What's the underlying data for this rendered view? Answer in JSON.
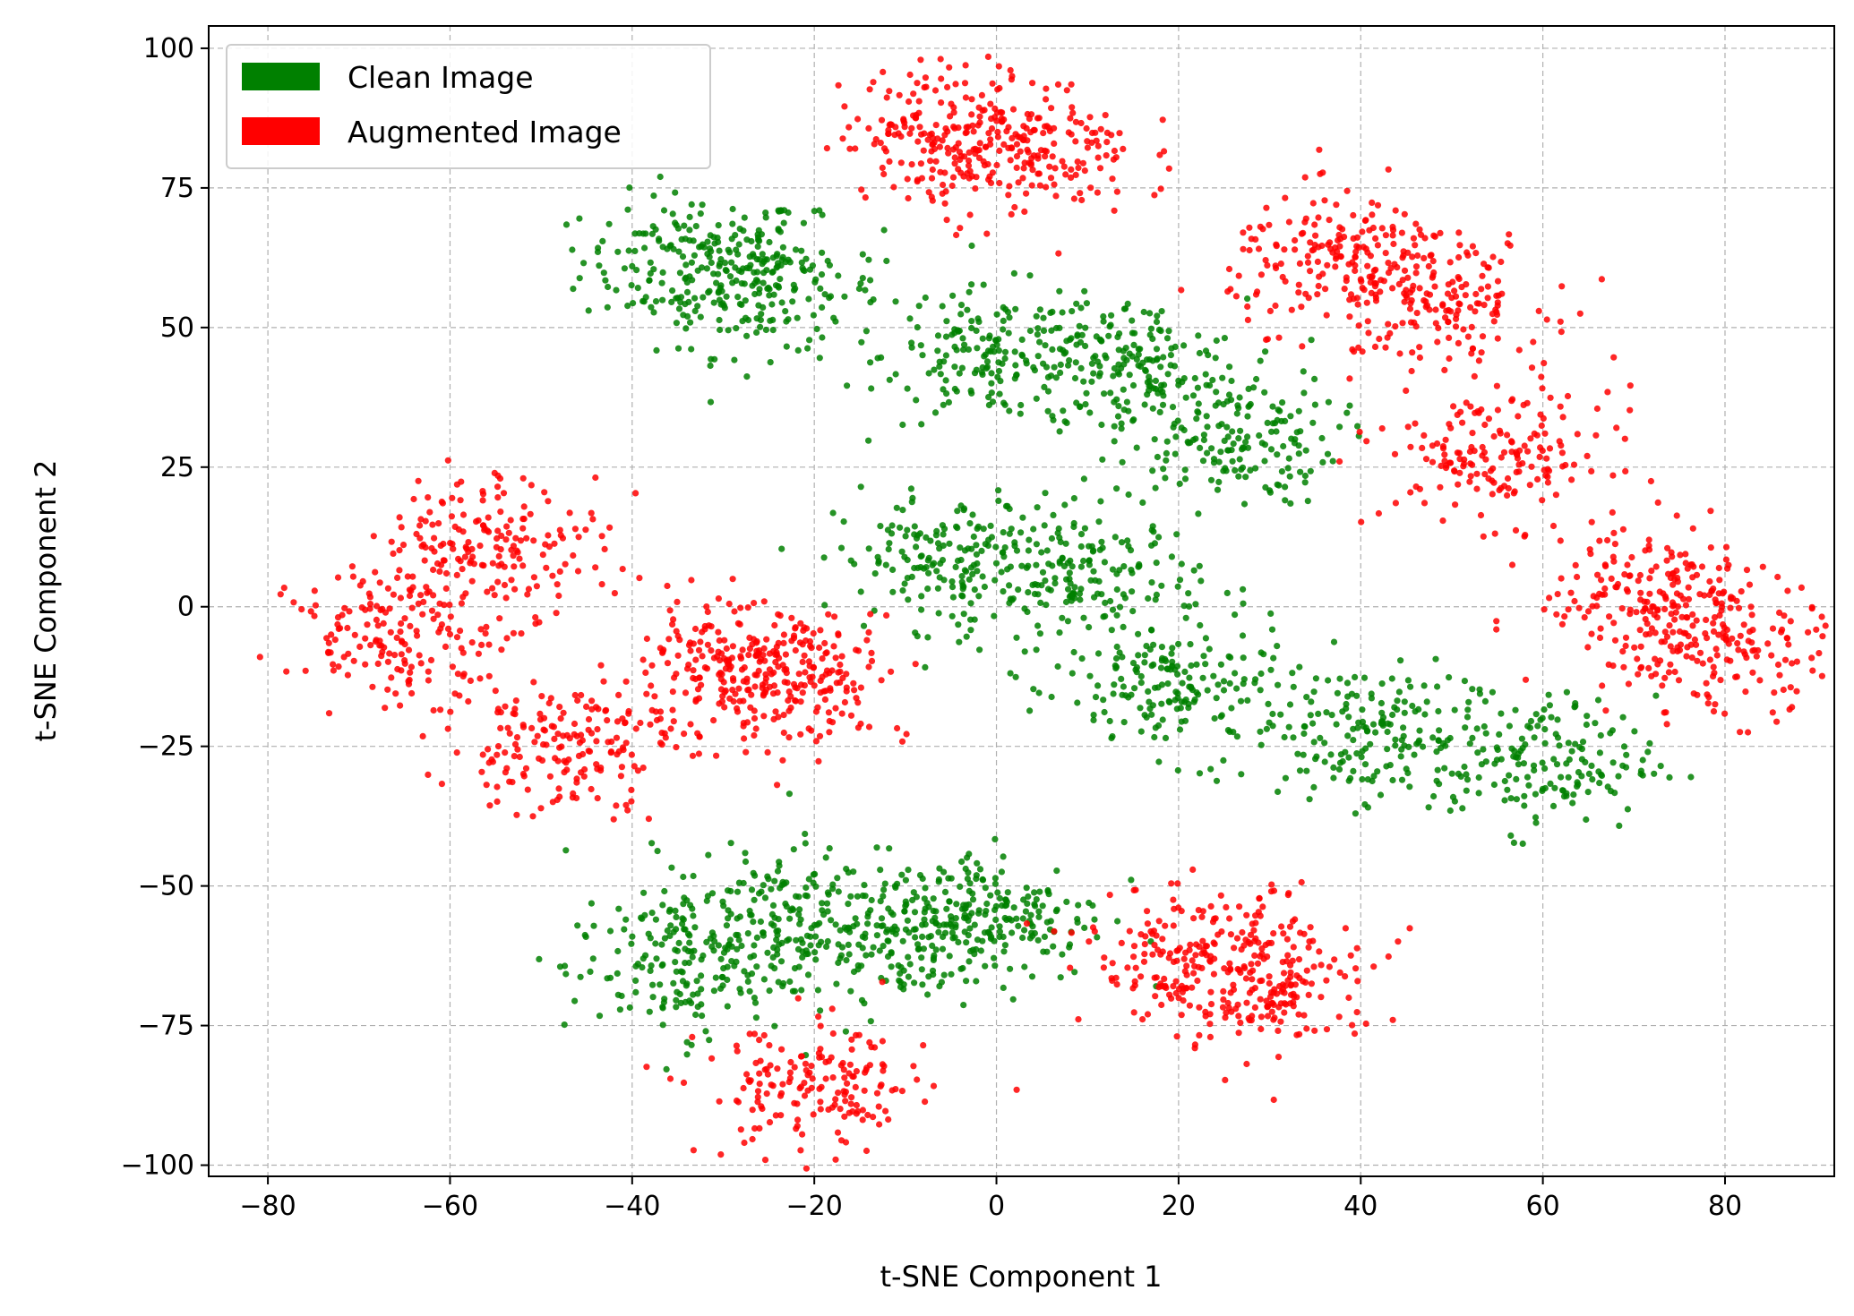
{
  "chart_data": {
    "type": "scatter",
    "title": "",
    "xlabel": "t-SNE Component 1",
    "ylabel": "t-SNE Component 2",
    "xlim": [
      -86.5,
      92
    ],
    "ylim": [
      -102,
      104
    ],
    "x_ticks": [
      -80,
      -60,
      -40,
      -20,
      0,
      20,
      40,
      60,
      80
    ],
    "y_ticks": [
      -100,
      -75,
      -50,
      -25,
      0,
      25,
      50,
      75,
      100
    ],
    "x_tick_labels": [
      "−80",
      "−60",
      "−40",
      "−20",
      "0",
      "20",
      "40",
      "60",
      "80"
    ],
    "y_tick_labels": [
      "−100",
      "−75",
      "−50",
      "−25",
      "0",
      "25",
      "50",
      "75",
      "100"
    ],
    "grid": true,
    "legend_position": "top-left",
    "series": [
      {
        "name": "Clean Image",
        "color": "#008000",
        "approx_cluster_centers": [
          [
            -33,
            62
          ],
          [
            -25,
            57
          ],
          [
            0,
            45
          ],
          [
            15,
            43
          ],
          [
            25,
            30
          ],
          [
            -5,
            8
          ],
          [
            10,
            5
          ],
          [
            20,
            -15
          ],
          [
            40,
            -22
          ],
          [
            60,
            -28
          ],
          [
            0,
            -55
          ],
          [
            -10,
            -58
          ],
          [
            -35,
            -65
          ],
          [
            -25,
            -55
          ]
        ]
      },
      {
        "name": "Augmented Image",
        "color": "#ff0000",
        "approx_cluster_centers": [
          [
            -5,
            85
          ],
          [
            3,
            82
          ],
          [
            38,
            62
          ],
          [
            48,
            55
          ],
          [
            55,
            27
          ],
          [
            72,
            3
          ],
          [
            79,
            -8
          ],
          [
            -65,
            -5
          ],
          [
            -55,
            12
          ],
          [
            -48,
            -25
          ],
          [
            -30,
            -12
          ],
          [
            -22,
            -12
          ],
          [
            30,
            -68
          ],
          [
            22,
            -62
          ],
          [
            -20,
            -87
          ]
        ]
      }
    ]
  }
}
